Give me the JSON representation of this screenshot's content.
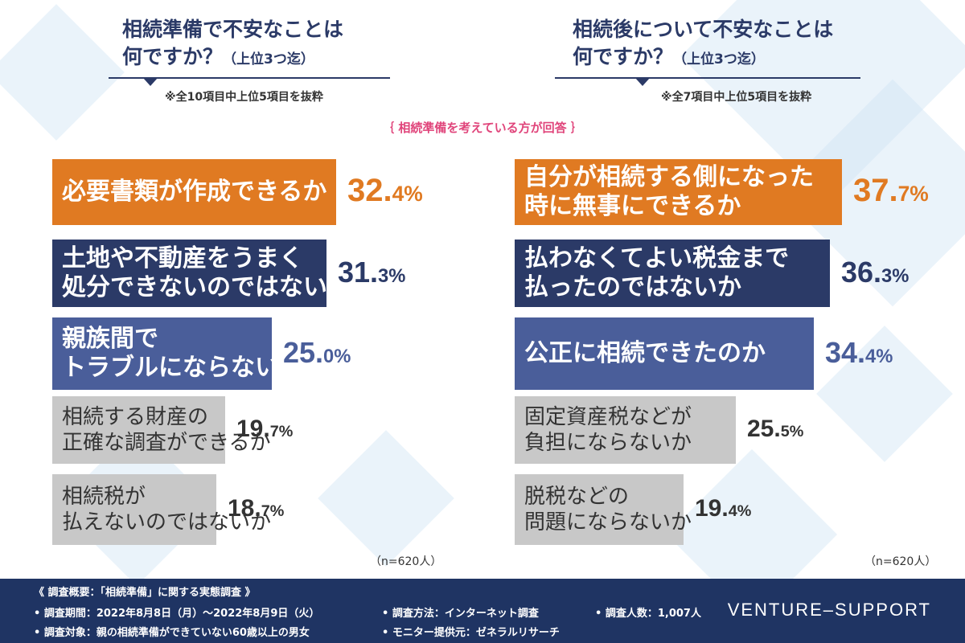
{
  "left_panel": {
    "title_line1": "相続準備で不安なことは",
    "title_line2": "何ですか？",
    "title_sub": "（上位3つ迄）",
    "note": "※全10項目中上位5項目を抜粋",
    "n_label": "（n=620人）"
  },
  "right_panel": {
    "title_line1": "相続後について不安なことは",
    "title_line2": "何ですか？",
    "title_sub": "（上位3つ迄）",
    "note": "※全7項目中上位5項目を抜粋",
    "n_label": "（n=620人）"
  },
  "respondent_note": "｛ 相続準備を考えている方が回答 ｝",
  "colors": {
    "orange": "#e07a22",
    "navy": "#2b3a67",
    "blue": "#4a5e9a",
    "gray": "#c8c8c8",
    "footer": "#1f3463"
  },
  "chart_data": [
    {
      "type": "bar",
      "orientation": "horizontal",
      "title": "相続準備で不安なことは何ですか？（上位3つ迄）",
      "categories": [
        "必要書類が作成できるか",
        "土地や不動産をうまく処分できないのではないか",
        "親族間でトラブルにならないか",
        "相続する財産の正確な調査ができるか",
        "相続税が払えないのではないか"
      ],
      "labels": [
        [
          "必要書類が作成できるか"
        ],
        [
          "土地や不動産をうまく",
          "処分できないのではないか"
        ],
        [
          "親族間で",
          "トラブルにならないか"
        ],
        [
          "相続する財産の",
          "正確な調査ができるか"
        ],
        [
          "相続税が",
          "払えないのではないか"
        ]
      ],
      "values": [
        32.4,
        31.3,
        25.0,
        19.7,
        18.7
      ],
      "value_labels": [
        [
          "32.",
          "4%"
        ],
        [
          "31.",
          "3%"
        ],
        [
          "25.",
          "0%"
        ],
        [
          "19.",
          "7%"
        ],
        [
          "18.",
          "7%"
        ]
      ],
      "unit": "%",
      "n": "n=620人"
    },
    {
      "type": "bar",
      "orientation": "horizontal",
      "title": "相続後について不安なことは何ですか？（上位3つ迄）",
      "categories": [
        "自分が相続する側になった時に無事にできるか",
        "払わなくてよい税金まで払ったのではないか",
        "公正に相続できたのか",
        "固定資産税などが負担にならないか",
        "脱税などの問題にならないか"
      ],
      "labels": [
        [
          "自分が相続する側になった",
          "時に無事にできるか"
        ],
        [
          "払わなくてよい税金まで",
          "払ったのではないか"
        ],
        [
          "公正に相続できたのか"
        ],
        [
          "固定資産税などが",
          "負担にならないか"
        ],
        [
          "脱税などの",
          "問題にならないか"
        ]
      ],
      "values": [
        37.7,
        36.3,
        34.4,
        25.5,
        19.4
      ],
      "value_labels": [
        [
          "37.",
          "7%"
        ],
        [
          "36.",
          "3%"
        ],
        [
          "34.",
          "4%"
        ],
        [
          "25.",
          "5%"
        ],
        [
          "19.",
          "4%"
        ]
      ],
      "unit": "%",
      "n": "n=620人"
    }
  ],
  "footer": {
    "heading": "《 調査概要：「相続準備」に関する実態調査 》",
    "period": "• 調査期間：2022年8月8日（月）～2022年8月9日（火）",
    "method": "• 調査方法：インターネット調査",
    "count": "• 調査人数：1,007人",
    "target": "• 調査対象：親の相続準備ができていない60歳以上の男女",
    "provider": "• モニター提供元：ゼネラルリサーチ",
    "brand": "VENTURE–SUPPORT"
  }
}
